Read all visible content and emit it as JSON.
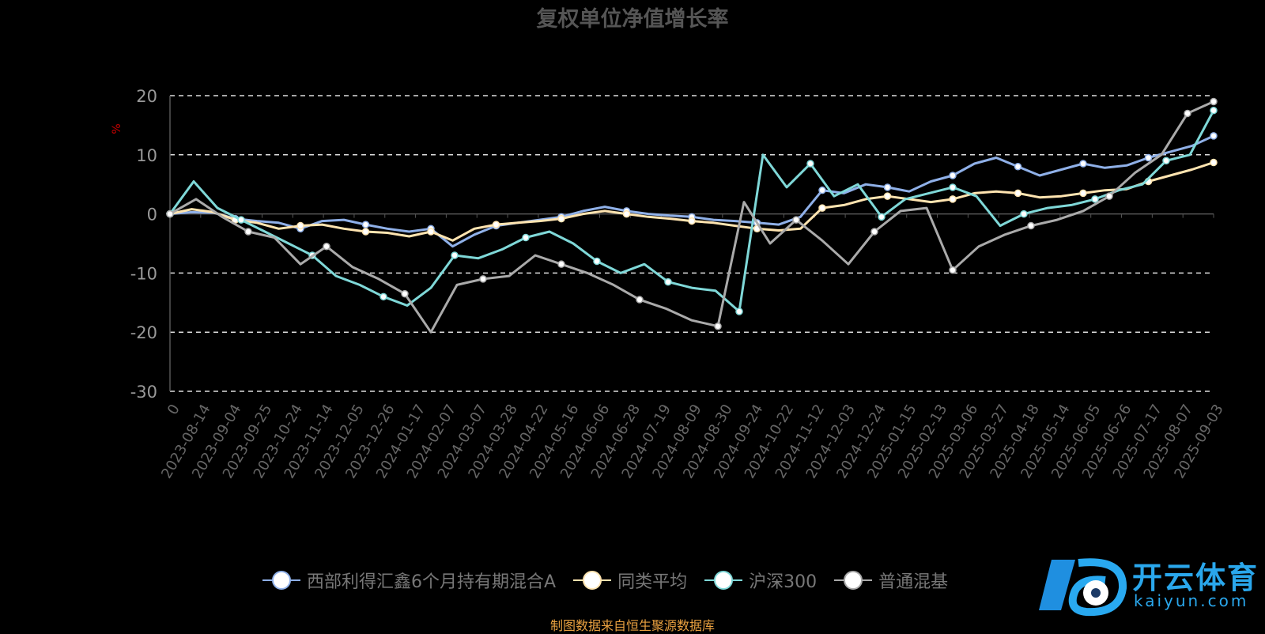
{
  "chart_data": {
    "type": "line",
    "title": "复权单位净值增长率",
    "ylabel": "%",
    "ylim": [
      -30,
      20
    ],
    "yticks": [
      20,
      10,
      0,
      -10,
      -20,
      -30
    ],
    "grid": "horizontal-dashed",
    "legend_position": "bottom-center",
    "x_ticks": [
      "0",
      "2023-08-14",
      "2023-09-04",
      "2023-09-25",
      "2023-10-24",
      "2023-11-14",
      "2023-12-05",
      "2023-12-26",
      "2024-01-17",
      "2024-02-07",
      "2024-03-07",
      "2024-03-28",
      "2024-04-22",
      "2024-05-16",
      "2024-06-06",
      "2024-06-28",
      "2024-07-19",
      "2024-08-09",
      "2024-08-30",
      "2024-09-24",
      "2024-10-22",
      "2024-11-12",
      "2024-12-03",
      "2024-12-24",
      "2025-01-15",
      "2025-02-13",
      "2025-03-06",
      "2025-03-27",
      "2025-04-18",
      "2025-05-14",
      "2025-06-05",
      "2025-06-26",
      "2025-07-17",
      "2025-08-07",
      "2025-09-03"
    ],
    "series": [
      {
        "name": "西部利得汇鑫6个月持有期混合A",
        "color": "#8fb0e8",
        "values": [
          0,
          0.3,
          0.2,
          -0.8,
          -1.2,
          -1.5,
          -2.5,
          -1.2,
          -1.0,
          -1.8,
          -2.5,
          -3.0,
          -2.5,
          -5.5,
          -3.5,
          -2.0,
          -1.5,
          -1.0,
          -0.5,
          0.5,
          1.2,
          0.5,
          0,
          -0.3,
          -0.5,
          -1.0,
          -1.2,
          -1.5,
          -1.8,
          -0.5,
          4.0,
          3.5,
          5.0,
          4.5,
          3.8,
          5.5,
          6.5,
          8.5,
          9.5,
          8.0,
          6.5,
          7.5,
          8.5,
          7.8,
          8.2,
          9.5,
          10.5,
          11.5,
          13.2
        ]
      },
      {
        "name": "同类平均",
        "color": "#ffe4b0",
        "values": [
          0,
          0.8,
          0.3,
          -1.0,
          -1.5,
          -2.5,
          -2.0,
          -1.8,
          -2.5,
          -3.0,
          -3.2,
          -3.8,
          -3.0,
          -4.5,
          -2.5,
          -1.8,
          -1.5,
          -1.2,
          -0.8,
          0,
          0.5,
          0,
          -0.5,
          -0.8,
          -1.2,
          -1.5,
          -2.0,
          -2.5,
          -2.8,
          -2.5,
          1.0,
          1.5,
          2.5,
          3.0,
          2.5,
          2.0,
          2.5,
          3.5,
          3.8,
          3.5,
          2.8,
          3.0,
          3.5,
          4.0,
          4.2,
          5.5,
          6.5,
          7.5,
          8.7
        ]
      },
      {
        "name": "沪深300",
        "color": "#7fd8d8",
        "values": [
          0,
          5.5,
          1.0,
          -1.0,
          -3.0,
          -5.0,
          -7.0,
          -10.5,
          -12.0,
          -14.0,
          -15.5,
          -12.5,
          -7.0,
          -7.5,
          -6.0,
          -4.0,
          -3.0,
          -5.0,
          -8.0,
          -10.0,
          -8.5,
          -11.5,
          -12.5,
          -13.0,
          -16.5,
          10.0,
          4.5,
          8.5,
          3.0,
          5.0,
          -0.5,
          2.5,
          3.5,
          4.5,
          3.0,
          -2.0,
          0,
          1.0,
          1.5,
          2.5,
          4.0,
          5.0,
          9.0,
          10.0,
          17.5
        ]
      },
      {
        "name": "普通混基",
        "color": "#aaaaaa",
        "values": [
          0,
          2.5,
          -0.5,
          -3.0,
          -4.0,
          -8.5,
          -5.5,
          -9.0,
          -11.0,
          -13.5,
          -20.0,
          -12.0,
          -11.0,
          -10.5,
          -7.0,
          -8.5,
          -10.0,
          -12.0,
          -14.5,
          -16.0,
          -18.0,
          -19.0,
          2.0,
          -5.0,
          -1.0,
          -4.5,
          -8.5,
          -3.0,
          0.5,
          1.0,
          -9.5,
          -5.5,
          -3.5,
          -2.0,
          -1.0,
          0.5,
          3.0,
          7.0,
          10.0,
          17.0,
          19.0
        ]
      }
    ]
  },
  "legend": {
    "items": [
      {
        "label": "西部利得汇鑫6个月持有期混合A",
        "color": "#8fb0e8"
      },
      {
        "label": "同类平均",
        "color": "#ffe4b0"
      },
      {
        "label": "沪深300",
        "color": "#7fd8d8"
      },
      {
        "label": "普通混基",
        "color": "#aaaaaa"
      }
    ]
  },
  "source_note": "制图数据来自恒生聚源数据库",
  "watermark": {
    "brand": "开云体育",
    "url": "kaiyun.com"
  }
}
